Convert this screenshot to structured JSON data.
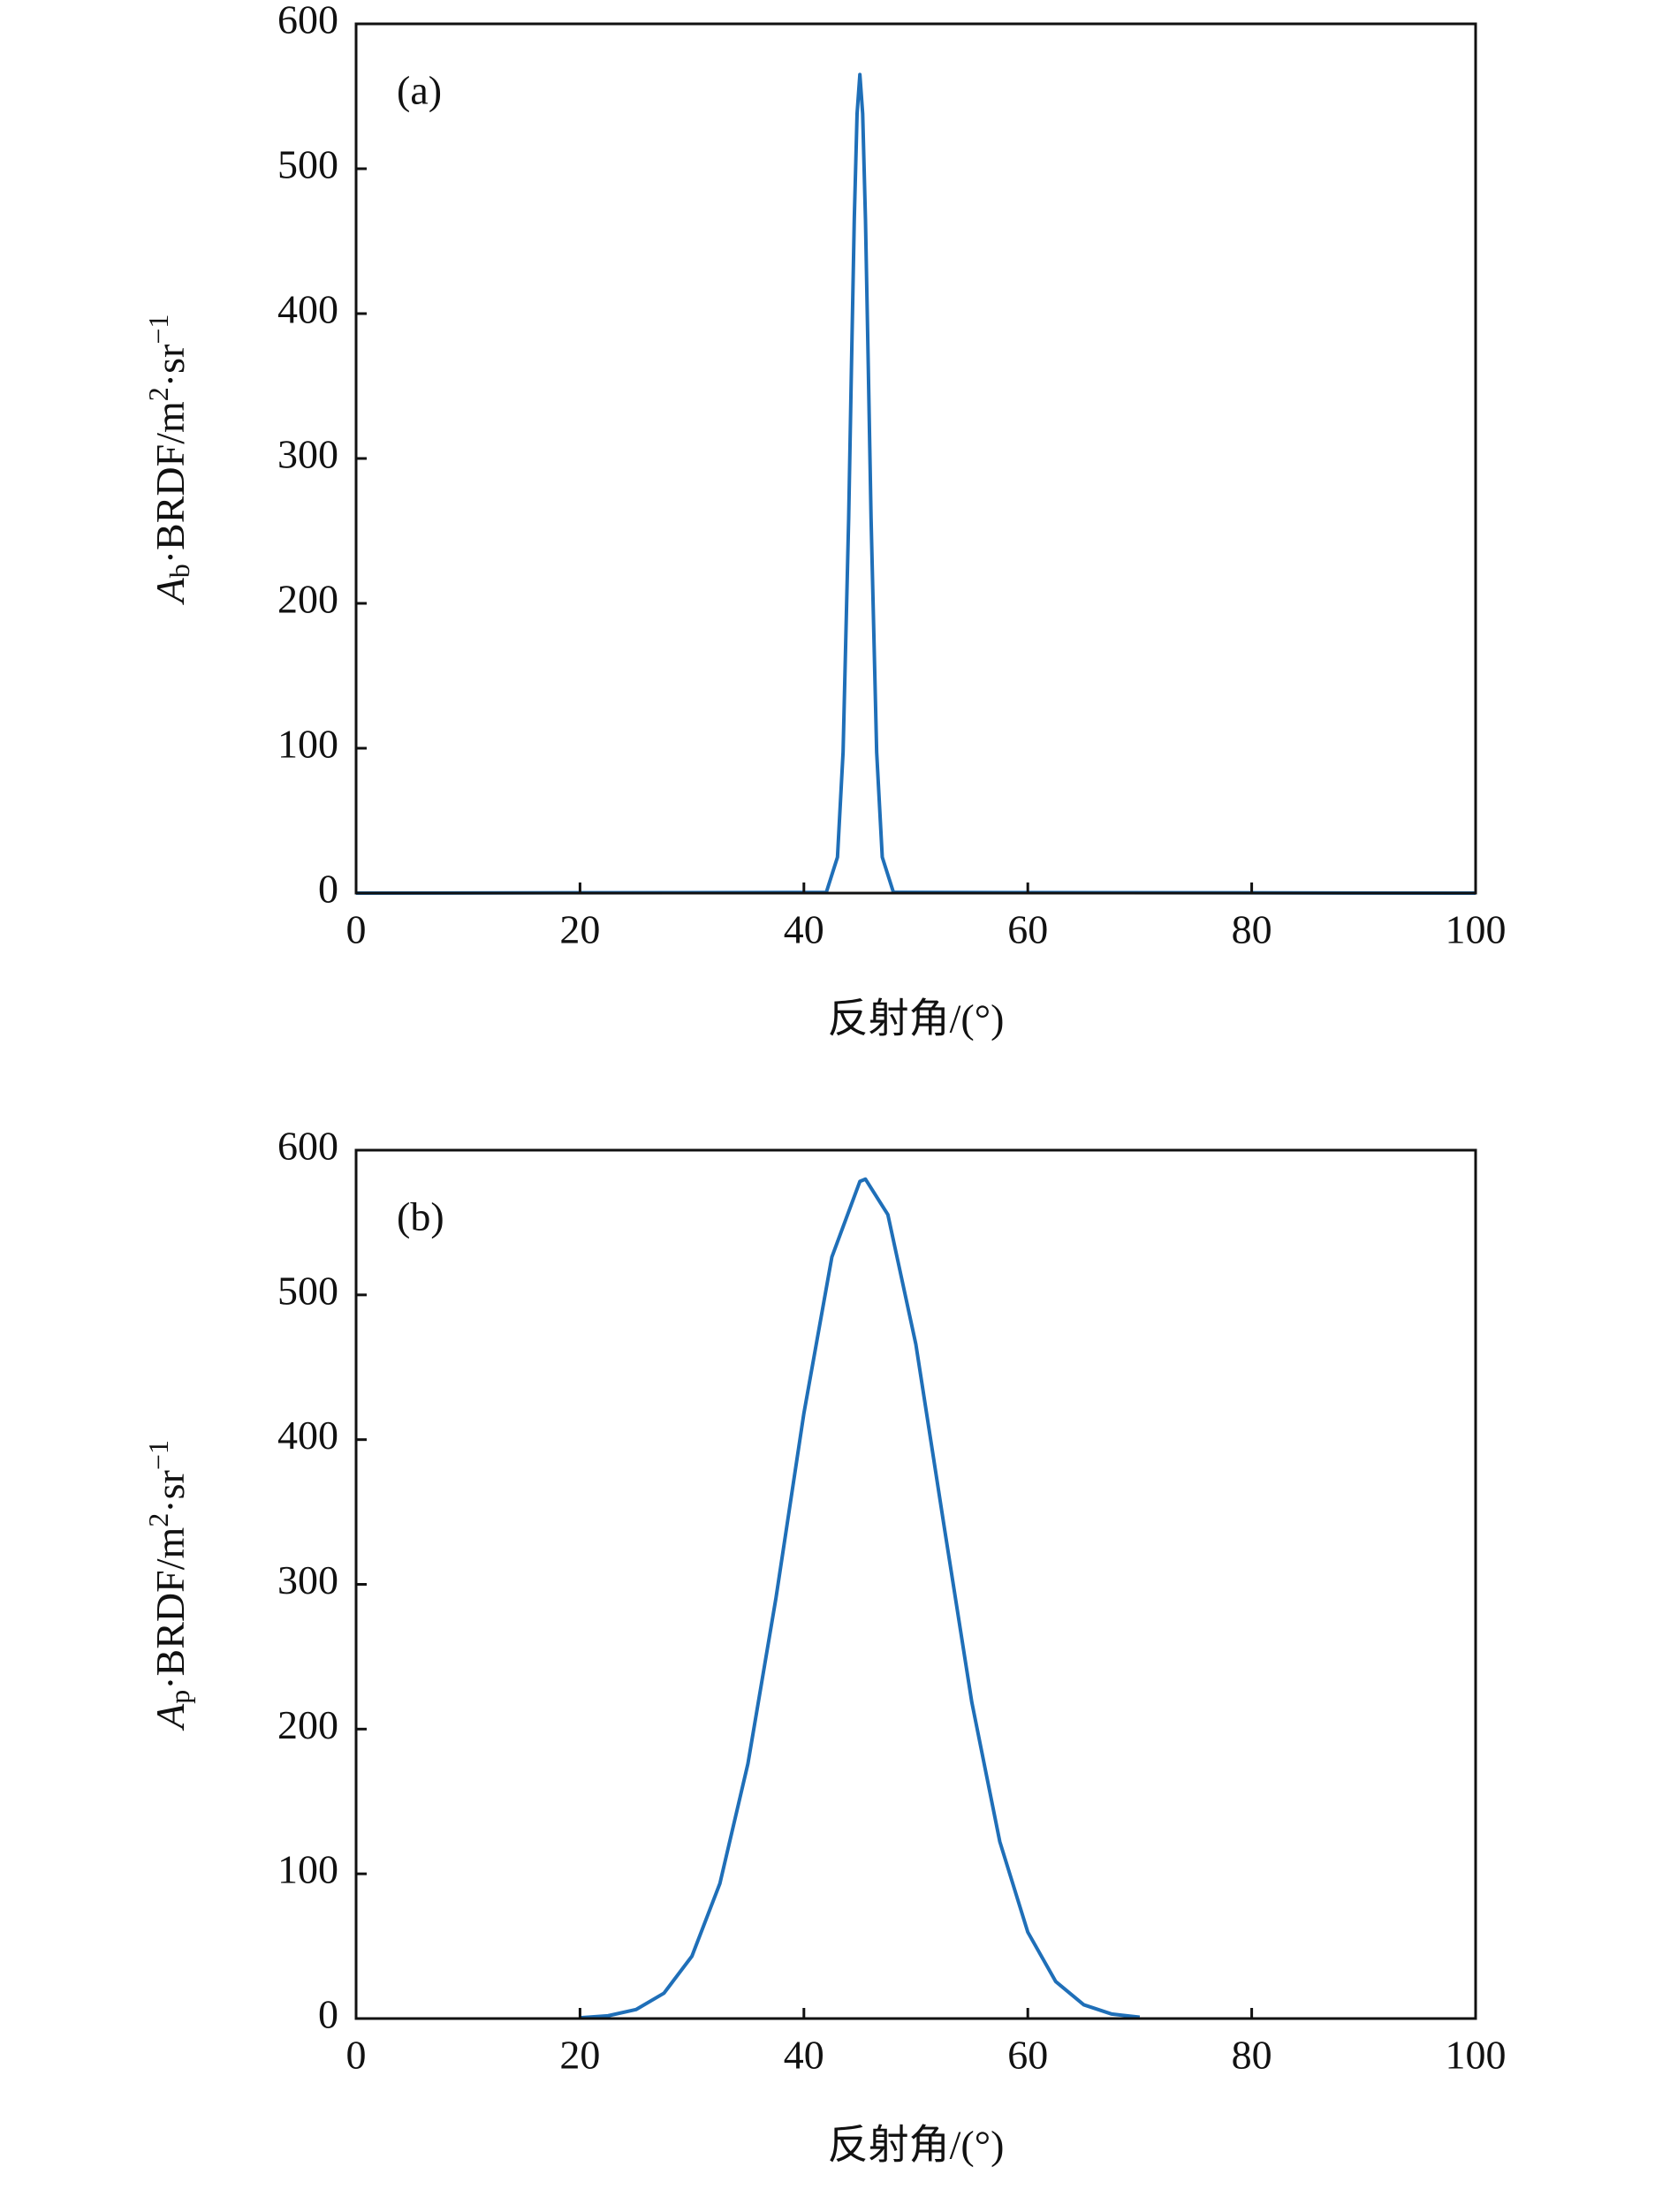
{
  "chart_data": [
    {
      "type": "line",
      "panel_label": "(a)",
      "xlabel": "反射角/(°)",
      "ylabel": [
        "A",
        "b",
        "·BRDF/m",
        "2",
        "·sr",
        "−1"
      ],
      "xlim": [
        0,
        100
      ],
      "xticks": [
        0,
        20,
        40,
        60,
        80,
        100
      ],
      "ylim": [
        0,
        600
      ],
      "yticks": [
        0,
        100,
        200,
        300,
        400,
        500,
        600
      ],
      "series": [
        {
          "color": "#1f6fb8",
          "x": [
            0,
            42,
            43,
            43.5,
            44,
            44.25,
            44.5,
            44.75,
            45,
            45.25,
            45.5,
            45.75,
            46,
            46.5,
            47,
            48,
            100
          ],
          "values": [
            0,
            0.5,
            24.8,
            97.3,
            258.7,
            364,
            465,
            538,
            565,
            538,
            465,
            364,
            258.7,
            97.3,
            24.8,
            0.5,
            0
          ]
        }
      ]
    },
    {
      "type": "line",
      "panel_label": "(b)",
      "xlabel": "反射角/(°)",
      "ylabel": [
        "A",
        "p",
        "·BRDF/m",
        "2",
        "·sr",
        "−1"
      ],
      "xlim": [
        0,
        100
      ],
      "xticks": [
        0,
        20,
        40,
        60,
        80,
        100
      ],
      "ylim": [
        0,
        600
      ],
      "yticks": [
        0,
        100,
        200,
        300,
        400,
        500,
        600
      ],
      "series": [
        {
          "color": "#1f6fb8",
          "x": [
            20,
            22.5,
            25,
            27.5,
            30,
            32.5,
            35,
            37.5,
            40,
            42.5,
            45,
            45.5,
            47.5,
            50,
            52.5,
            55,
            57.5,
            60,
            62.5,
            65,
            67.5,
            70
          ],
          "values": [
            0.5,
            1.9,
            6.2,
            17.5,
            43.1,
            93.4,
            176.1,
            290.3,
            418.2,
            526.2,
            578.4,
            580,
            555.5,
            465.9,
            341.4,
            218.5,
            122.2,
            59.7,
            25.5,
            9.5,
            3.1,
            0.9
          ]
        }
      ]
    }
  ]
}
